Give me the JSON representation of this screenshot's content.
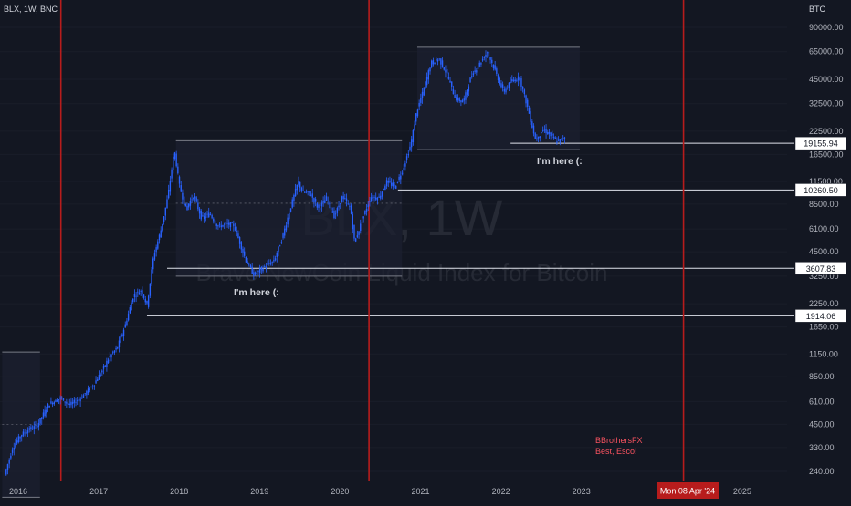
{
  "header": {
    "symbol_info": "BLX, 1W, BNC",
    "currency": "BTC"
  },
  "watermark": {
    "ticker": "BLX, 1W",
    "description": "Brave NewCoin Liquid Index for Bitcoin"
  },
  "colors": {
    "background": "#131722",
    "candle": "#2962ff",
    "cycle_line": "#b71c1c",
    "level_line": "#e0e3eb",
    "box_fill": "#1c2030",
    "box_stroke": "#787b86",
    "note_text": "#f7525f",
    "badge_dark": "#ffffff",
    "date_badge": "#b71c1c"
  },
  "annotations": {
    "here_label": "I'm here (:",
    "author": "BBrothersFX",
    "signoff": "Best, Esco!"
  },
  "crosshair_date": "Mon 08 Apr '24",
  "chart_data": {
    "type": "candlestick",
    "title": "BLX, 1W, BNC",
    "y_scale": "log",
    "y_unit": "BTC",
    "x_ticks": [
      "2016",
      "2017",
      "2018",
      "2019",
      "2020",
      "2021",
      "2022",
      "2023",
      "2025"
    ],
    "y_ticks": [
      "90000.00",
      "65000.00",
      "45000.00",
      "32500.00",
      "22500.00",
      "16500.00",
      "11500.00",
      "8500.00",
      "6100.00",
      "4500.00",
      "3250.00",
      "2250.00",
      "1650.00",
      "1150.00",
      "850.00",
      "610.00",
      "450.00",
      "330.00",
      "240.00"
    ],
    "y_tick_values": [
      90000,
      65000,
      45000,
      32500,
      22500,
      16500,
      11500,
      8500,
      6100,
      4500,
      3250,
      2250,
      1650,
      1150,
      850,
      610,
      450,
      330,
      240
    ],
    "x_tick_years": [
      2016,
      2017,
      2018,
      2019,
      2020,
      2021,
      2022,
      2023,
      2025
    ],
    "price_levels": [
      {
        "value": 19155.94,
        "label": "19155.94",
        "from_year": 2022.12
      },
      {
        "value": 10260.5,
        "label": "10260.50",
        "from_year": 2020.72
      },
      {
        "value": 3607.83,
        "label": "3607.83",
        "from_year": 2017.85
      },
      {
        "value": 1914.06,
        "label": "1914.06",
        "from_year": 2017.6
      }
    ],
    "cycle_lines": [
      2016.53,
      2020.36,
      2024.27
    ],
    "boxes": [
      {
        "x_from": 2017.96,
        "x_to": 2020.77,
        "top": 19800,
        "bottom": 3250,
        "mid": 8600
      },
      {
        "x_from": 2020.96,
        "x_to": 2022.98,
        "top": 69000,
        "bottom": 17600,
        "mid": 35000
      },
      {
        "x_from": 2015.8,
        "x_to": 2016.27,
        "top": 1180,
        "bottom": 170,
        "mid": 450
      }
    ],
    "price_path": [
      [
        2015.85,
        230
      ],
      [
        2015.95,
        330
      ],
      [
        2016.05,
        390
      ],
      [
        2016.15,
        420
      ],
      [
        2016.25,
        440
      ],
      [
        2016.4,
        590
      ],
      [
        2016.55,
        640
      ],
      [
        2016.65,
        580
      ],
      [
        2016.8,
        640
      ],
      [
        2016.95,
        760
      ],
      [
        2017.05,
        900
      ],
      [
        2017.15,
        1100
      ],
      [
        2017.25,
        1250
      ],
      [
        2017.35,
        1700
      ],
      [
        2017.45,
        2500
      ],
      [
        2017.55,
        2700
      ],
      [
        2017.62,
        2200
      ],
      [
        2017.7,
        4200
      ],
      [
        2017.8,
        6200
      ],
      [
        2017.88,
        9500
      ],
      [
        2017.96,
        17500
      ],
      [
        2018.02,
        11000
      ],
      [
        2018.1,
        8000
      ],
      [
        2018.2,
        9500
      ],
      [
        2018.3,
        7000
      ],
      [
        2018.4,
        7500
      ],
      [
        2018.5,
        6300
      ],
      [
        2018.6,
        6500
      ],
      [
        2018.7,
        6400
      ],
      [
        2018.85,
        4000
      ],
      [
        2018.95,
        3300
      ],
      [
        2019.05,
        3600
      ],
      [
        2019.2,
        4000
      ],
      [
        2019.3,
        5400
      ],
      [
        2019.4,
        8000
      ],
      [
        2019.5,
        11500
      ],
      [
        2019.55,
        10000
      ],
      [
        2019.65,
        9800
      ],
      [
        2019.75,
        8000
      ],
      [
        2019.85,
        9200
      ],
      [
        2019.95,
        7200
      ],
      [
        2020.05,
        9500
      ],
      [
        2020.15,
        8000
      ],
      [
        2020.2,
        5100
      ],
      [
        2020.3,
        7000
      ],
      [
        2020.4,
        9400
      ],
      [
        2020.5,
        9200
      ],
      [
        2020.6,
        11500
      ],
      [
        2020.7,
        10700
      ],
      [
        2020.8,
        13500
      ],
      [
        2020.9,
        19000
      ],
      [
        2020.97,
        29000
      ],
      [
        2021.05,
        38000
      ],
      [
        2021.15,
        56000
      ],
      [
        2021.25,
        59000
      ],
      [
        2021.35,
        48000
      ],
      [
        2021.45,
        35000
      ],
      [
        2021.55,
        33000
      ],
      [
        2021.65,
        47000
      ],
      [
        2021.75,
        55000
      ],
      [
        2021.85,
        65000
      ],
      [
        2021.95,
        50000
      ],
      [
        2022.05,
        38000
      ],
      [
        2022.15,
        44000
      ],
      [
        2022.25,
        46000
      ],
      [
        2022.35,
        31000
      ],
      [
        2022.45,
        20000
      ],
      [
        2022.55,
        23000
      ],
      [
        2022.65,
        21000
      ],
      [
        2022.72,
        19500
      ],
      [
        2022.8,
        20500
      ]
    ]
  }
}
